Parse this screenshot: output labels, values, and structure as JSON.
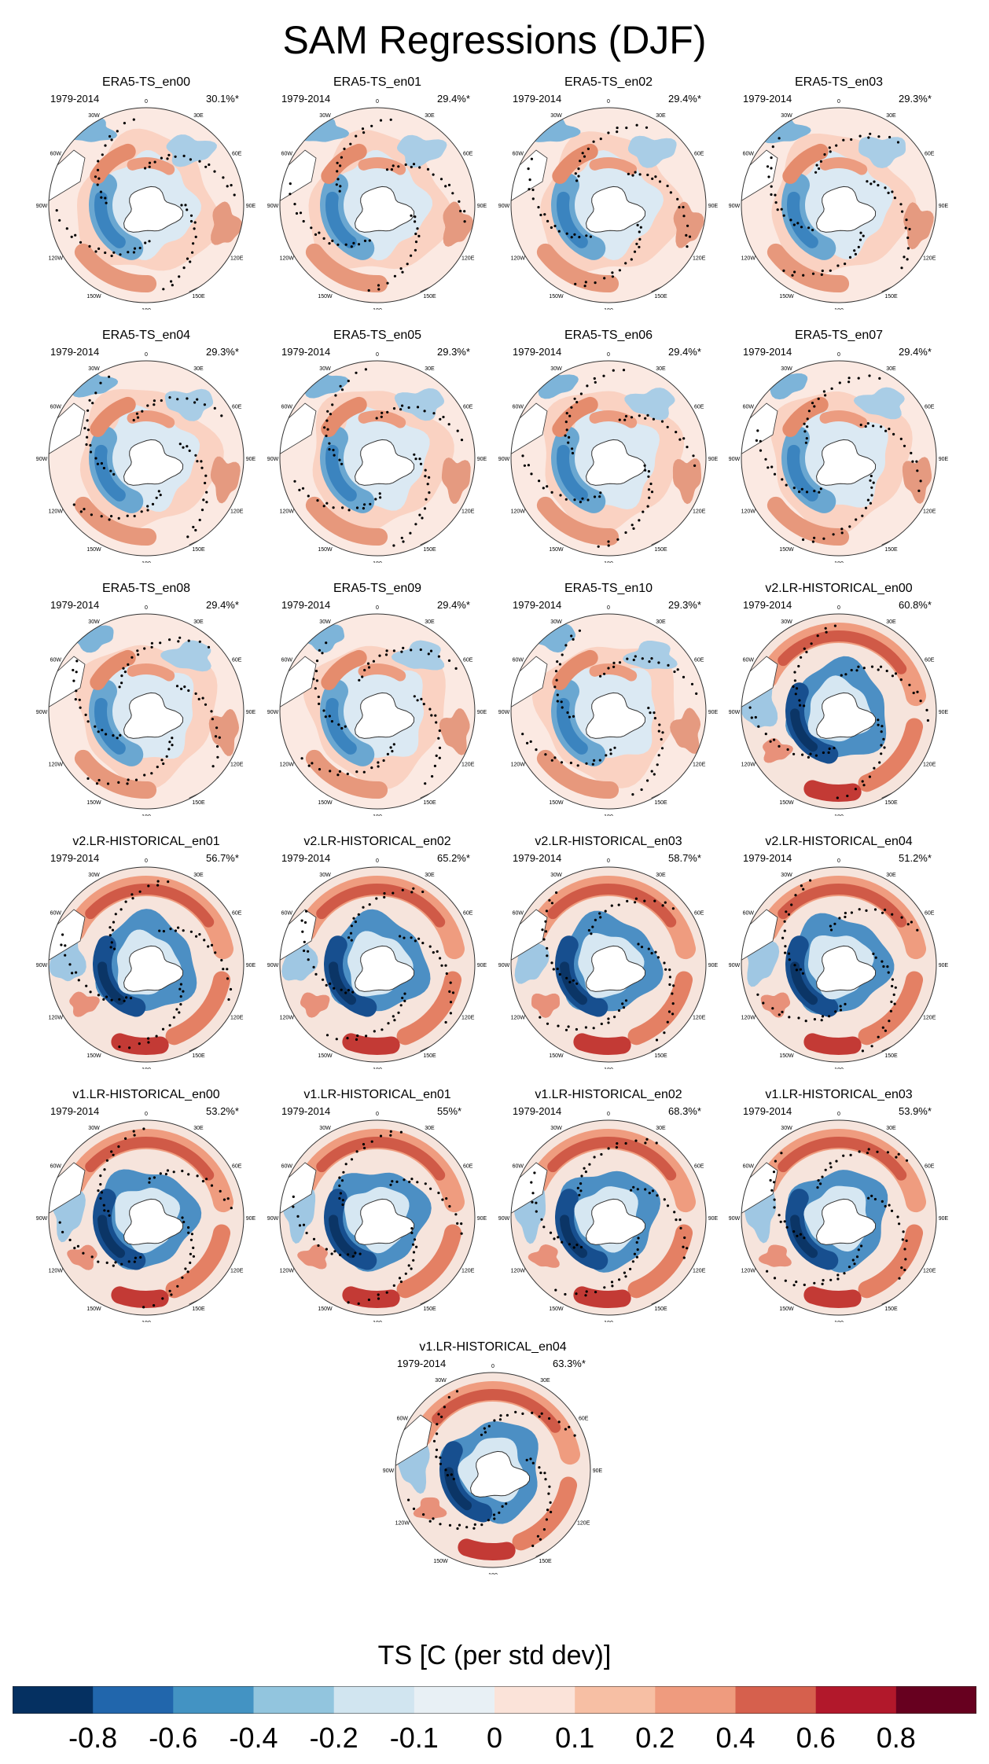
{
  "figure": {
    "title": "SAM Regressions (DJF)",
    "colorbar_label": "TS [C (per std dev)]",
    "colorbar_ticks": [
      "-0.8",
      "-0.6",
      "-0.4",
      "-0.2",
      "-0.1",
      "0",
      "0.1",
      "0.2",
      "0.4",
      "0.6",
      "0.8"
    ],
    "colorbar_colors": [
      "#053061",
      "#2166ac",
      "#4393c3",
      "#92c5de",
      "#d1e5f0",
      "#e8f0f5",
      "#fbe3d9",
      "#f7bfa4",
      "#ef9b7e",
      "#d6604d",
      "#b2182b",
      "#67001f"
    ],
    "lon_labels": [
      "0",
      "30E",
      "60E",
      "90E",
      "120E",
      "150E",
      "180",
      "150W",
      "120W",
      "90W",
      "60W",
      "30W"
    ]
  },
  "map_data": {
    "type": "south-polar-stereographic-regression-maps",
    "variable": "TS",
    "season": "DJF",
    "panels": [
      {
        "title": "ERA5-TS_en00",
        "period": "1979-2014",
        "variance": "30.1%*",
        "style": "obs"
      },
      {
        "title": "ERA5-TS_en01",
        "period": "1979-2014",
        "variance": "29.4%*",
        "style": "obs"
      },
      {
        "title": "ERA5-TS_en02",
        "period": "1979-2014",
        "variance": "29.4%*",
        "style": "obs"
      },
      {
        "title": "ERA5-TS_en03",
        "period": "1979-2014",
        "variance": "29.3%*",
        "style": "obs"
      },
      {
        "title": "ERA5-TS_en04",
        "period": "1979-2014",
        "variance": "29.3%*",
        "style": "obs"
      },
      {
        "title": "ERA5-TS_en05",
        "period": "1979-2014",
        "variance": "29.3%*",
        "style": "obs"
      },
      {
        "title": "ERA5-TS_en06",
        "period": "1979-2014",
        "variance": "29.4%*",
        "style": "obs"
      },
      {
        "title": "ERA5-TS_en07",
        "period": "1979-2014",
        "variance": "29.4%*",
        "style": "obs"
      },
      {
        "title": "ERA5-TS_en08",
        "period": "1979-2014",
        "variance": "29.4%*",
        "style": "obs"
      },
      {
        "title": "ERA5-TS_en09",
        "period": "1979-2014",
        "variance": "29.4%*",
        "style": "obs"
      },
      {
        "title": "ERA5-TS_en10",
        "period": "1979-2014",
        "variance": "29.3%*",
        "style": "obs"
      },
      {
        "title": "v2.LR-HISTORICAL_en00",
        "period": "1979-2014",
        "variance": "60.8%*",
        "style": "model"
      },
      {
        "title": "v2.LR-HISTORICAL_en01",
        "period": "1979-2014",
        "variance": "56.7%*",
        "style": "model"
      },
      {
        "title": "v2.LR-HISTORICAL_en02",
        "period": "1979-2014",
        "variance": "65.2%*",
        "style": "model"
      },
      {
        "title": "v2.LR-HISTORICAL_en03",
        "period": "1979-2014",
        "variance": "58.7%*",
        "style": "model"
      },
      {
        "title": "v2.LR-HISTORICAL_en04",
        "period": "1979-2014",
        "variance": "51.2%*",
        "style": "model"
      },
      {
        "title": "v1.LR-HISTORICAL_en00",
        "period": "1979-2014",
        "variance": "53.2%*",
        "style": "model"
      },
      {
        "title": "v1.LR-HISTORICAL_en01",
        "period": "1979-2014",
        "variance": "55%*",
        "style": "model"
      },
      {
        "title": "v1.LR-HISTORICAL_en02",
        "period": "1979-2014",
        "variance": "68.3%*",
        "style": "model"
      },
      {
        "title": "v1.LR-HISTORICAL_en03",
        "period": "1979-2014",
        "variance": "53.9%*",
        "style": "model"
      },
      {
        "title": "v1.LR-HISTORICAL_en04",
        "period": "1979-2014",
        "variance": "63.3%*",
        "style": "model"
      }
    ]
  }
}
